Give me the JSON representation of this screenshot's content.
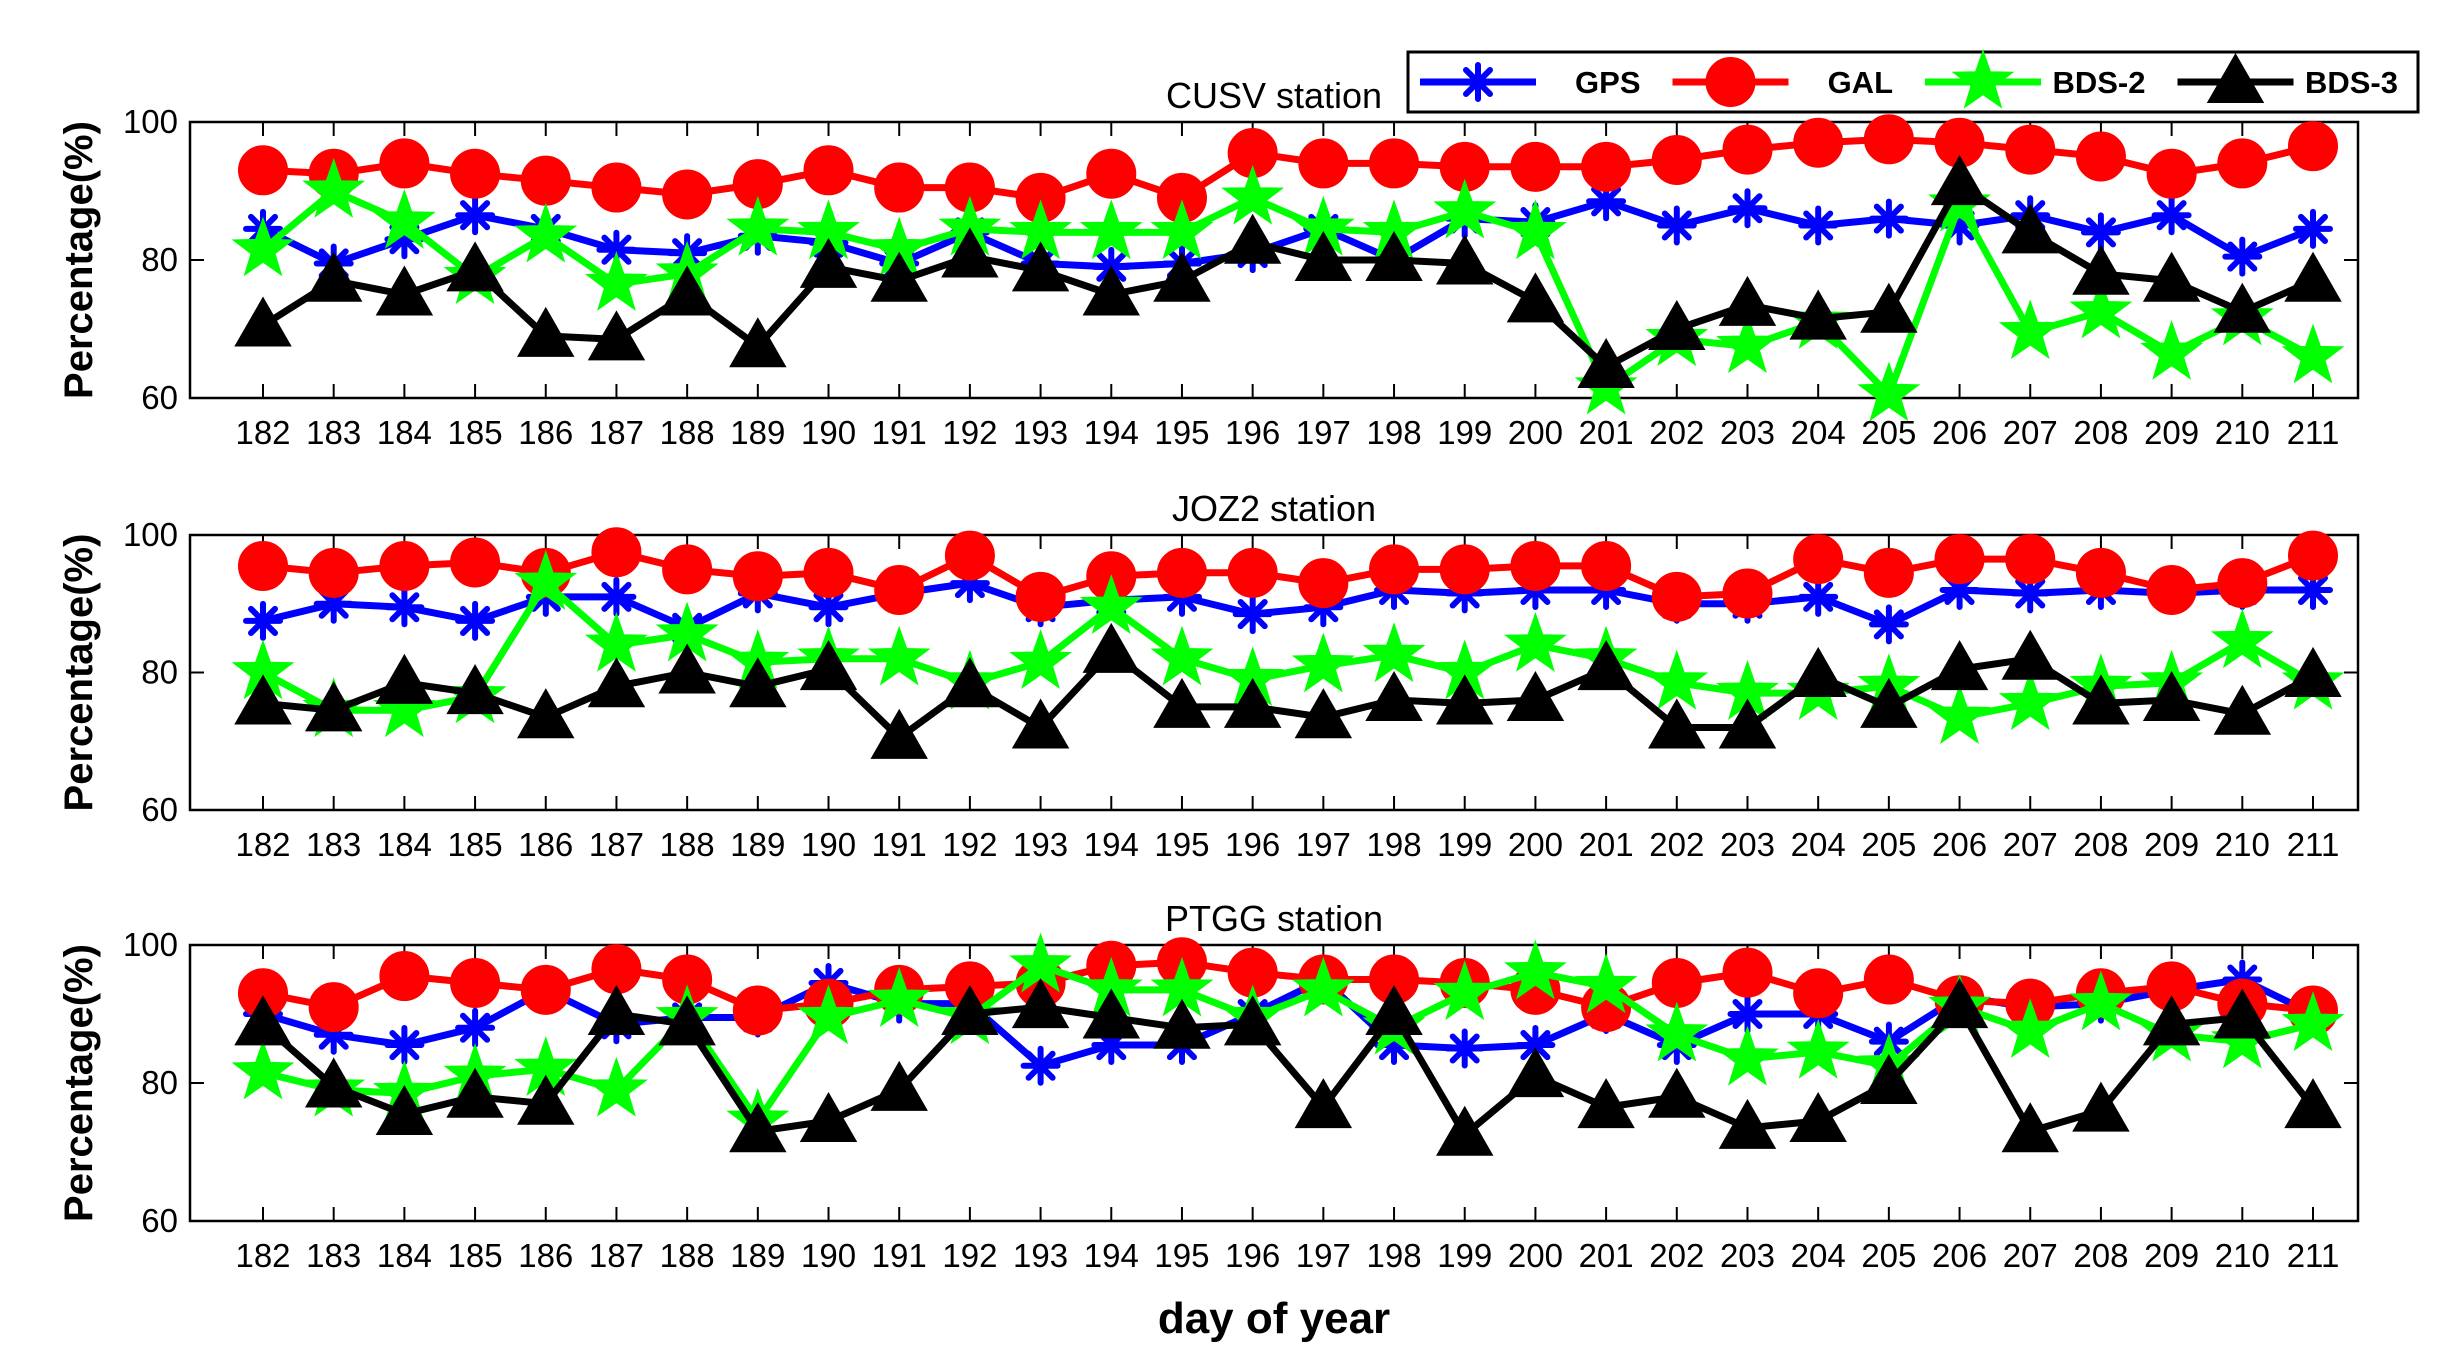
{
  "chart_data": [
    {
      "type": "line",
      "title": "CUSV station",
      "ylabel": "Percentage(%)",
      "xlabel": "",
      "ylim": [
        60,
        100
      ],
      "yticks": [
        60,
        80,
        100
      ],
      "categories": [
        "182",
        "183",
        "184",
        "185",
        "186",
        "187",
        "188",
        "189",
        "190",
        "191",
        "192",
        "193",
        "194",
        "195",
        "196",
        "197",
        "198",
        "199",
        "200",
        "201",
        "202",
        "203",
        "204",
        "205",
        "206",
        "207",
        "208",
        "209",
        "210",
        "211"
      ],
      "series": [
        {
          "name": "GPS",
          "values": [
            84.5,
            79.5,
            83,
            86.5,
            84.5,
            81.5,
            81,
            83.5,
            82.5,
            79.5,
            84,
            79.5,
            79,
            79.5,
            81,
            84.5,
            80,
            86,
            85.5,
            88.5,
            85,
            87.5,
            85,
            86,
            85,
            86.5,
            84,
            86.5,
            80.5,
            84.5
          ]
        },
        {
          "name": "GAL",
          "values": [
            93,
            92.5,
            94,
            92.5,
            91.5,
            90.5,
            89.5,
            91,
            93,
            90.5,
            90.5,
            89,
            92.5,
            89,
            95.5,
            94,
            94,
            93.5,
            93.5,
            93.5,
            94.5,
            96,
            97,
            97.5,
            97,
            96,
            95,
            92.5,
            94,
            96.5
          ]
        },
        {
          "name": "BDS-2",
          "values": [
            81.5,
            90,
            85.5,
            77.5,
            83.5,
            76.5,
            78,
            84.5,
            84,
            81.5,
            84.5,
            84,
            84,
            84,
            89,
            84.5,
            84,
            87,
            84,
            61.5,
            68.5,
            67.5,
            71,
            60.5,
            88,
            69.5,
            72.5,
            66.5,
            71.5,
            66
          ]
        },
        {
          "name": "BDS-3",
          "values": [
            70.5,
            77,
            75,
            78.5,
            69,
            68.5,
            75,
            67.5,
            79,
            77,
            80.5,
            78.5,
            75,
            77,
            82.5,
            80,
            80,
            79.5,
            74,
            64.5,
            70,
            73.5,
            71.5,
            72.5,
            91,
            84,
            78,
            77,
            72.5,
            77
          ]
        }
      ]
    },
    {
      "type": "line",
      "title": "JOZ2 station",
      "ylabel": "Percentage(%)",
      "xlabel": "",
      "ylim": [
        60,
        100
      ],
      "yticks": [
        60,
        80,
        100
      ],
      "categories": [
        "182",
        "183",
        "184",
        "185",
        "186",
        "187",
        "188",
        "189",
        "190",
        "191",
        "192",
        "193",
        "194",
        "195",
        "196",
        "197",
        "198",
        "199",
        "200",
        "201",
        "202",
        "203",
        "204",
        "205",
        "206",
        "207",
        "208",
        "209",
        "210",
        "211"
      ],
      "series": [
        {
          "name": "GPS",
          "values": [
            87.5,
            90,
            89.5,
            87.5,
            91,
            91,
            86.5,
            91.5,
            89.5,
            91.5,
            93,
            89.5,
            90.5,
            91,
            88.5,
            89.5,
            92,
            91.5,
            92,
            92,
            90,
            90,
            91,
            87,
            92,
            91.5,
            92,
            91.5,
            92,
            92
          ]
        },
        {
          "name": "GAL",
          "values": [
            95.5,
            94.5,
            95.5,
            96,
            94.5,
            97.5,
            95,
            94,
            94.5,
            92,
            97,
            91,
            94,
            94.5,
            94.5,
            93,
            95,
            95,
            95.5,
            95.5,
            91,
            91.5,
            96.5,
            94.5,
            96.5,
            96.5,
            94.5,
            92,
            93,
            97
          ]
        },
        {
          "name": "BDS-2",
          "values": [
            80,
            74.5,
            74.5,
            76.5,
            93,
            84,
            85.5,
            81.5,
            82,
            82,
            78.5,
            81.5,
            89.5,
            82,
            79,
            81,
            82.5,
            80,
            84,
            82,
            78.5,
            77,
            77,
            78,
            73.5,
            75.5,
            78,
            78.5,
            84.5,
            78.5
          ]
        },
        {
          "name": "BDS-3",
          "values": [
            75.5,
            74.5,
            78.5,
            77,
            73.5,
            78,
            80,
            78,
            80.5,
            70.5,
            78,
            72,
            83,
            75,
            75,
            73.5,
            76,
            75.5,
            76,
            80.5,
            72,
            72,
            79.5,
            75,
            80.5,
            82,
            75.5,
            76,
            74,
            79.5
          ]
        }
      ]
    },
    {
      "type": "line",
      "title": "PTGG station",
      "ylabel": "Percentage(%)",
      "xlabel": "day of year",
      "ylim": [
        60,
        100
      ],
      "yticks": [
        60,
        80,
        100
      ],
      "categories": [
        "182",
        "183",
        "184",
        "185",
        "186",
        "187",
        "188",
        "189",
        "190",
        "191",
        "192",
        "193",
        "194",
        "195",
        "196",
        "197",
        "198",
        "199",
        "200",
        "201",
        "202",
        "203",
        "204",
        "205",
        "206",
        "207",
        "208",
        "209",
        "210",
        "211"
      ],
      "series": [
        {
          "name": "GPS",
          "values": [
            90,
            87,
            85.5,
            88,
            93.5,
            88.5,
            89.5,
            89.5,
            94.5,
            91.5,
            91.5,
            82.5,
            85.5,
            85.5,
            90,
            95,
            85.5,
            85,
            85.5,
            90,
            85.5,
            90,
            90,
            86,
            92.5,
            91,
            91.5,
            93.5,
            95,
            90
          ]
        },
        {
          "name": "GAL",
          "values": [
            93,
            91,
            95.5,
            94.5,
            93.5,
            96.5,
            95,
            90.5,
            91.5,
            93.5,
            94,
            94.5,
            97,
            97.5,
            96,
            95,
            95,
            94.5,
            93.5,
            91,
            94.5,
            96,
            93,
            95,
            92,
            91.5,
            93,
            94,
            91.5,
            90.5
          ]
        },
        {
          "name": "BDS-2",
          "values": [
            81.5,
            79,
            78.5,
            81,
            82,
            79,
            89.5,
            74.5,
            89.5,
            92,
            89.5,
            97,
            93.5,
            93.5,
            89.5,
            93.5,
            88,
            93,
            96,
            94,
            87,
            83.5,
            84.5,
            82.5,
            91,
            87.5,
            91.5,
            87,
            86,
            88.5
          ]
        },
        {
          "name": "BDS-3",
          "values": [
            88.5,
            79.5,
            75.5,
            78,
            77,
            90,
            88.5,
            73,
            74.5,
            79,
            90,
            91,
            89.5,
            88,
            88.5,
            76.5,
            90,
            72.5,
            81,
            76.5,
            78,
            73.5,
            74.5,
            80,
            91,
            73,
            76,
            88.5,
            89.5,
            76.5
          ]
        }
      ]
    }
  ],
  "legend": [
    {
      "name": "GPS",
      "color": "#0000ff",
      "marker": "asterisk"
    },
    {
      "name": "GAL",
      "color": "#ff0000",
      "marker": "circle"
    },
    {
      "name": "BDS-2",
      "color": "#00ff00",
      "marker": "star"
    },
    {
      "name": "BDS-3",
      "color": "#000000",
      "marker": "triangle"
    }
  ],
  "series_colors": {
    "GPS": "#0000ff",
    "GAL": "#ff0000",
    "BDS-2": "#00ff00",
    "BDS-3": "#000000"
  },
  "series_markers": {
    "GPS": "asterisk",
    "GAL": "circle",
    "BDS-2": "star",
    "BDS-3": "triangle"
  }
}
